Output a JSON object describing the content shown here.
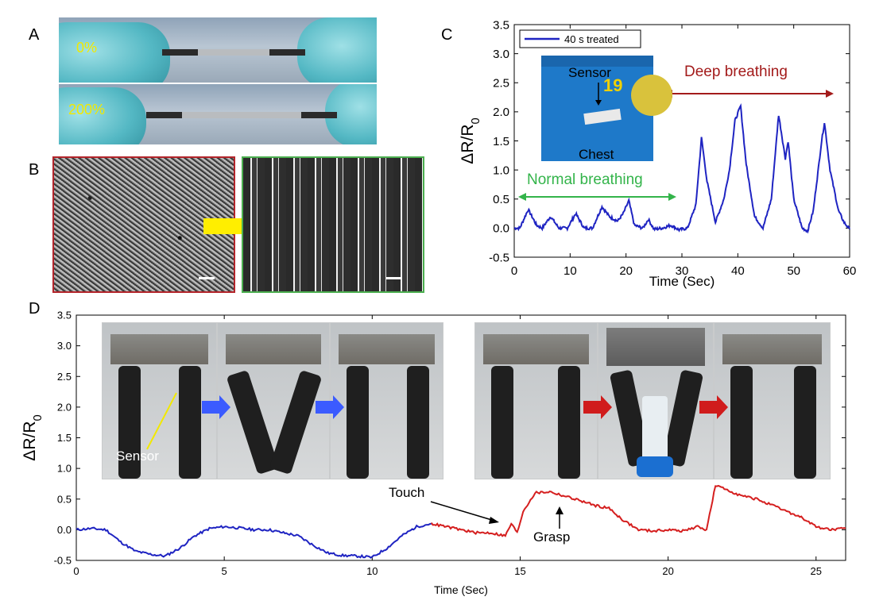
{
  "panels": {
    "a": "A",
    "b": "B",
    "c": "C",
    "d": "D"
  },
  "panel_a": {
    "label_top": "0%",
    "label_bottom": "200%"
  },
  "colors": {
    "blue_series": "#1f24c2",
    "red_series": "#d51f1f",
    "green_annot": "#33b44a",
    "darkred_annot": "#a31b1b",
    "blue_arrow": "#3b5bff",
    "red_arrow": "#d01c1c",
    "yellow_arrow": "#ffee00"
  },
  "chart_data": [
    {
      "type": "line",
      "xlabel": "Time (Sec)",
      "ylabel": "ΔR/R0",
      "xlim": [
        0,
        60
      ],
      "ylim": [
        -0.5,
        3.5
      ],
      "xticks": [
        "0",
        "10",
        "20",
        "30",
        "40",
        "50",
        "60"
      ],
      "yticks": [
        "-0.5",
        "0.0",
        "0.5",
        "1.0",
        "1.5",
        "2.0",
        "2.5",
        "3.0",
        "3.5"
      ],
      "legend": "top-left",
      "series": [
        {
          "name": "40 s treated",
          "x": [
            0,
            1,
            2.5,
            4,
            5,
            6.5,
            8,
            9.5,
            11,
            12.5,
            14,
            15.7,
            17,
            18.5,
            19.5,
            20.5,
            21.5,
            23,
            24,
            25,
            26.5,
            28,
            29.5,
            31,
            32.5,
            33.5,
            34.5,
            36,
            37.5,
            38.5,
            39.5,
            40.5,
            41.5,
            43,
            44.5,
            46,
            47.3,
            48.5,
            49,
            50,
            51.5,
            52.5,
            53.5,
            55,
            55.5,
            56.5,
            58,
            59,
            60
          ],
          "values": [
            0.0,
            0.0,
            0.32,
            0.05,
            0.0,
            0.2,
            0.0,
            0.0,
            0.25,
            0.0,
            0.0,
            0.37,
            0.2,
            0.12,
            0.25,
            0.47,
            0.05,
            0.0,
            0.15,
            -0.02,
            0.0,
            0.05,
            -0.03,
            0.0,
            0.4,
            1.55,
            0.8,
            0.1,
            0.5,
            1.0,
            1.85,
            2.1,
            1.1,
            0.2,
            0.0,
            0.5,
            1.95,
            1.2,
            1.5,
            0.5,
            0.0,
            -0.05,
            0.3,
            1.5,
            1.82,
            1.0,
            0.3,
            0.1,
            -0.02
          ]
        }
      ],
      "annotations": {
        "normal": "Normal breathing",
        "deep": "Deep breathing",
        "sensor": "Sensor",
        "chest": "Chest",
        "shirt_number": "19"
      }
    },
    {
      "type": "line",
      "xlabel": "Time (Sec)",
      "ylabel": "ΔR/R0",
      "xlim": [
        0,
        26
      ],
      "ylim": [
        -0.5,
        3.5
      ],
      "xticks": [
        "0",
        "5",
        "10",
        "15",
        "20",
        "25"
      ],
      "yticks": [
        "-0.5",
        "0.0",
        "0.5",
        "1.0",
        "1.5",
        "2.0",
        "2.5",
        "3.0",
        "3.5"
      ],
      "series": [
        {
          "x": [
            0,
            0.5,
            1.0,
            1.5,
            2.0,
            2.5,
            3.0,
            3.5,
            4.0,
            4.5,
            5.0,
            5.5,
            6.0,
            6.5,
            7.0,
            7.5,
            8.0,
            8.5,
            9.0,
            9.5,
            10.0,
            10.5,
            11.0,
            11.5,
            12.0
          ],
          "values": [
            0.0,
            0.02,
            0.0,
            -0.2,
            -0.35,
            -0.4,
            -0.43,
            -0.3,
            -0.1,
            0.02,
            0.05,
            0.03,
            0.0,
            0.0,
            -0.05,
            -0.1,
            -0.25,
            -0.38,
            -0.42,
            -0.43,
            -0.45,
            -0.3,
            -0.1,
            0.05,
            0.1
          ]
        },
        {
          "x": [
            12.0,
            12.5,
            13.0,
            13.5,
            14.0,
            14.5,
            14.7,
            14.9,
            15.1,
            15.5,
            16.0,
            16.5,
            17.0,
            17.5,
            18.0,
            18.5,
            19.0,
            19.5,
            20.0,
            20.5,
            21.0,
            21.3,
            21.6,
            22.0,
            22.5,
            23.0,
            23.5,
            24.0,
            24.5,
            25.0,
            25.5,
            26.0
          ],
          "values": [
            0.1,
            0.05,
            0.0,
            -0.05,
            -0.05,
            -0.1,
            0.1,
            -0.05,
            0.3,
            0.6,
            0.62,
            0.55,
            0.48,
            0.4,
            0.35,
            0.15,
            0.0,
            -0.02,
            0.0,
            -0.02,
            0.05,
            0.0,
            0.72,
            0.65,
            0.55,
            0.5,
            0.4,
            0.3,
            0.2,
            0.05,
            0.0,
            0.02
          ]
        }
      ],
      "annotations": {
        "touch": "Touch",
        "grasp": "Grasp",
        "sensor": "Sensor"
      }
    }
  ]
}
